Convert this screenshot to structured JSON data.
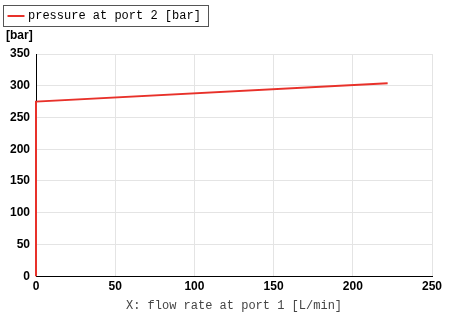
{
  "chart_data": {
    "type": "line",
    "xlabel": "X: flow rate at port 1 [L/min]",
    "ylabel": "[bar]",
    "x": [
      0,
      0,
      222
    ],
    "series": [
      {
        "name": "pressure at port 2 [bar]",
        "color": "#e8312a",
        "values": [
          0,
          275,
          304
        ]
      }
    ],
    "xlim": [
      0,
      250
    ],
    "xticks": [
      0,
      50,
      100,
      150,
      200,
      250
    ],
    "ylim": [
      0,
      350
    ],
    "yticks": [
      0,
      50,
      100,
      150,
      200,
      250,
      300,
      350
    ],
    "grid": true,
    "legend": "top-left"
  }
}
